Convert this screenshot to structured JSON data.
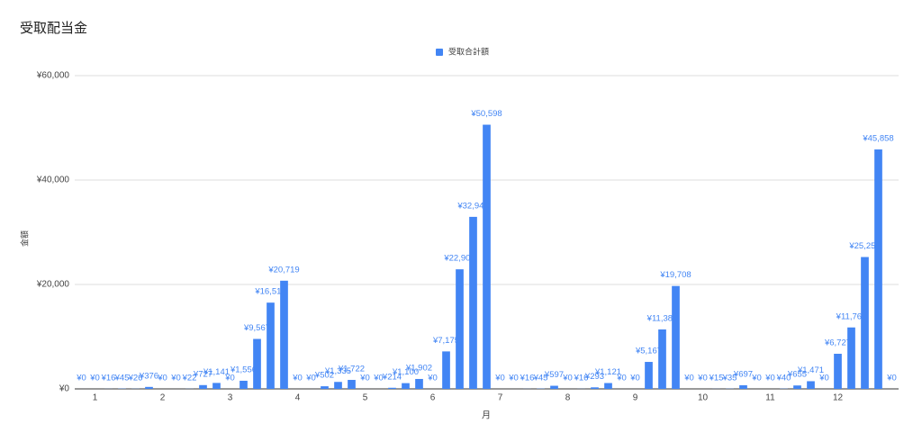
{
  "chart_data": {
    "type": "bar",
    "title": "受取配当金",
    "x_label": "月",
    "y_label": "金額",
    "categories": [
      null,
      "1",
      null,
      null,
      null,
      null,
      "2",
      null,
      null,
      null,
      null,
      "3",
      null,
      null,
      null,
      null,
      "4",
      null,
      null,
      null,
      null,
      "5",
      null,
      null,
      null,
      null,
      "6",
      null,
      null,
      null,
      null,
      "7",
      null,
      null,
      null,
      null,
      "8",
      null,
      null,
      null,
      null,
      "9",
      null,
      null,
      null,
      null,
      "10",
      null,
      null,
      null,
      null,
      "11",
      null,
      null,
      null,
      null,
      "12",
      null,
      null,
      null,
      null
    ],
    "series": [
      {
        "name": "受取合計額",
        "color": "#4285f4",
        "values": [
          0,
          0,
          16,
          45,
          26,
          376,
          0,
          0,
          22,
          727,
          1141,
          0,
          1556,
          9567,
          16519,
          20719,
          0,
          0,
          502,
          1335,
          1722,
          0,
          0,
          214,
          1100,
          1902,
          0,
          7175,
          22903,
          32949,
          50598,
          0,
          0,
          16,
          45,
          597,
          0,
          16,
          293,
          1121,
          0,
          0,
          5167,
          11389,
          19708,
          0,
          0,
          15,
          35,
          697,
          0,
          0,
          40,
          655,
          1471,
          0,
          6727,
          11768,
          25256,
          45858,
          0
        ],
        "value_labels": [
          "¥0",
          "¥0",
          "¥16",
          "¥45",
          "¥26",
          "¥376",
          "¥0",
          "¥0",
          "¥22",
          "¥727",
          "¥1,141",
          "¥0",
          "¥1,556",
          "¥9,567",
          "¥16,519",
          "¥20,719",
          "¥0",
          "¥0",
          "¥502",
          "¥1,335",
          "¥1,722",
          "¥0",
          "¥0",
          "¥214",
          "¥1,100",
          "¥1,902",
          "¥0",
          "¥7,175",
          "¥22,903",
          "¥32,949",
          "¥50,598",
          "¥0",
          "¥0",
          "¥16",
          "¥45",
          "¥597",
          "¥0",
          "¥16",
          "¥293",
          "¥1,121",
          "¥0",
          "¥0",
          "¥5,167",
          "¥11,389",
          "¥19,708",
          "¥0",
          "¥0",
          "¥15",
          "¥35",
          "¥697",
          "¥0",
          "¥0",
          "¥40",
          "¥655",
          "¥1,471",
          "¥0",
          "¥6,727",
          "¥11,768",
          "¥25,256",
          "¥45,858",
          "¥0"
        ]
      }
    ],
    "ylim": [
      0,
      60000
    ],
    "yticks": [
      {
        "value": 0,
        "label": "¥0"
      },
      {
        "value": 20000,
        "label": "¥20,000"
      },
      {
        "value": 40000,
        "label": "¥40,000"
      },
      {
        "value": 60000,
        "label": "¥60,000"
      }
    ],
    "grid": true,
    "legend": "top"
  }
}
